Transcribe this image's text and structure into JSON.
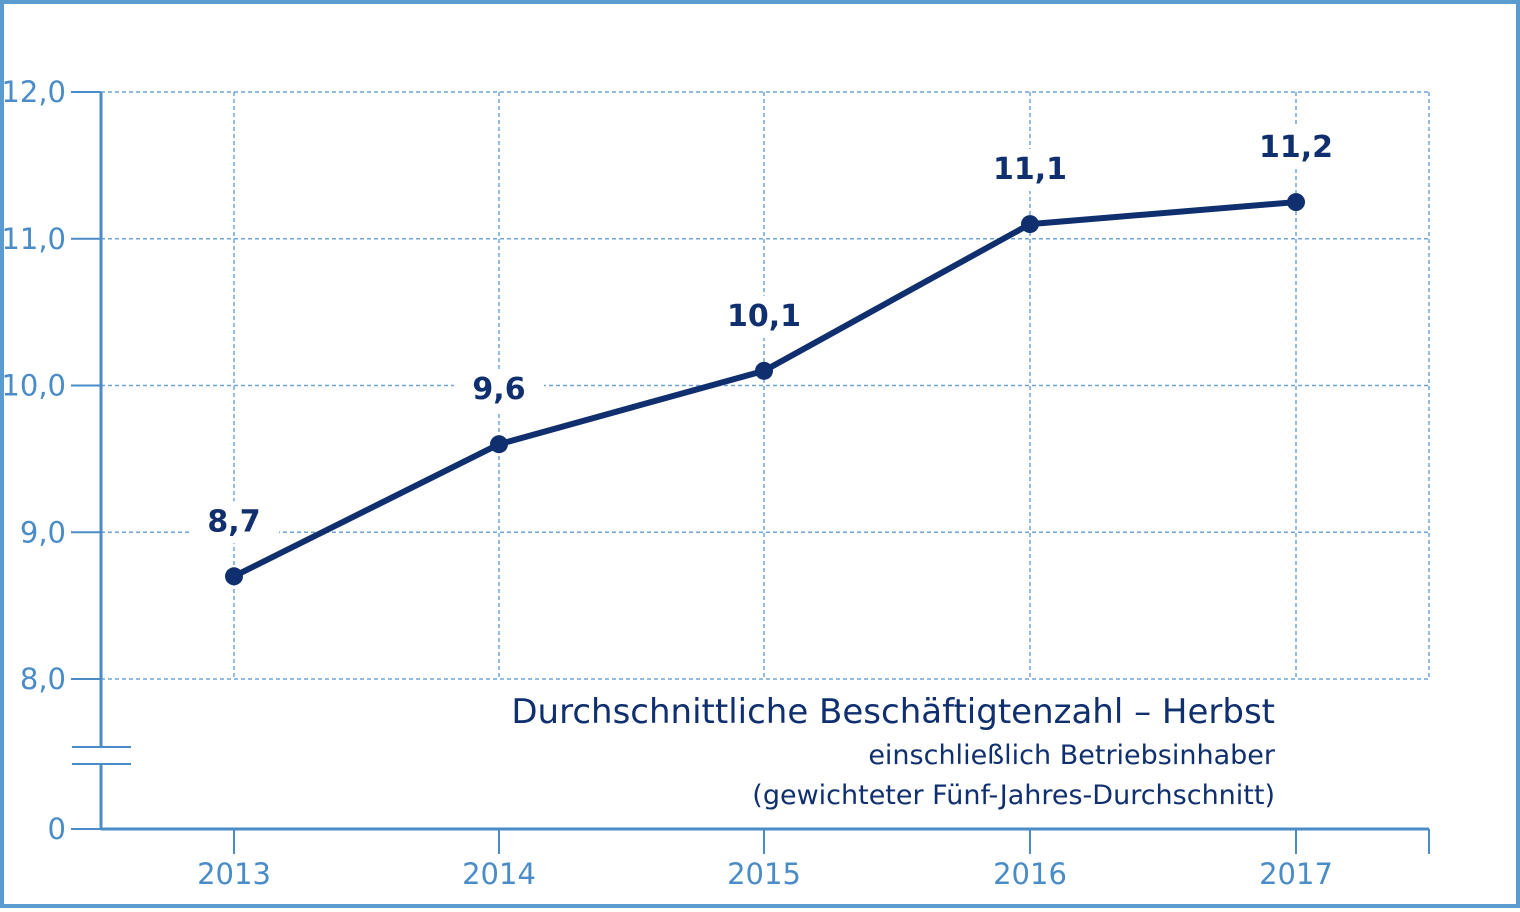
{
  "colors": {
    "axis": "#4a8cc7",
    "grid": "#6fa6d6",
    "line": "#0f2f6e",
    "frame": "#5b9bd0"
  },
  "chart_data": {
    "type": "line",
    "title": "Durchschnittliche Beschäftigtenzahl – Herbst",
    "subtitle_lines": [
      "einschließlich Betriebsinhaber",
      "(gewichteter Fünf-Jahres-Durchschnitt)"
    ],
    "categories": [
      "2013",
      "2014",
      "2015",
      "2016",
      "2017"
    ],
    "series": [
      {
        "values": [
          8.7,
          9.6,
          10.1,
          11.1,
          11.25
        ]
      }
    ],
    "data_labels": [
      "8,7",
      "9,6",
      "10,1",
      "11,1",
      "11,2"
    ],
    "y_ticks": [
      {
        "value": 12.0,
        "label": "12,0"
      },
      {
        "value": 11.0,
        "label": "11,0"
      },
      {
        "value": 10.0,
        "label": "10,0"
      },
      {
        "value": 9.0,
        "label": "9,0"
      },
      {
        "value": 8.0,
        "label": "8,0"
      },
      {
        "value": 0,
        "label": "0"
      }
    ],
    "ylim": [
      8.0,
      12.0
    ],
    "axis_break": true,
    "grid": true,
    "grid_style": "dashed",
    "legend": "none"
  }
}
